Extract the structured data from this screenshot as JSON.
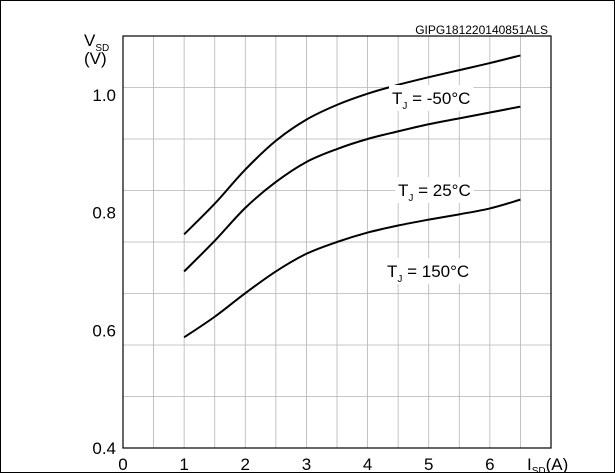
{
  "chart_data": {
    "type": "line",
    "figure_code": "GIPG181220140851ALS",
    "ylabel": {
      "main": "V",
      "sub": "SD",
      "unit": "(V)"
    },
    "xlabel": {
      "main": "I",
      "sub": "SD",
      "unit": "(A)"
    },
    "xlim": [
      0,
      7
    ],
    "ylim": [
      0.4,
      1.1
    ],
    "x_ticks": [
      "0",
      "1",
      "2",
      "3",
      "4",
      "5",
      "6"
    ],
    "y_ticks": [
      "0.4",
      "0.6",
      "0.8",
      "1.0"
    ],
    "grid": true,
    "series": [
      {
        "name": "T_J = -50°C",
        "label_main": "T",
        "label_sub": "J",
        "label_rest": " = -50°C",
        "x": [
          1,
          1.5,
          2,
          2.5,
          3,
          3.5,
          4,
          4.5,
          5,
          5.5,
          6,
          6.5
        ],
        "y": [
          0.763,
          0.815,
          0.873,
          0.922,
          0.958,
          0.983,
          1.002,
          1.017,
          1.03,
          1.042,
          1.054,
          1.067
        ]
      },
      {
        "name": "T_J = 25°C",
        "label_main": "T",
        "label_sub": "J",
        "label_rest": " = 25°C",
        "x": [
          1,
          1.5,
          2,
          2.5,
          3,
          3.5,
          4,
          4.5,
          5,
          5.5,
          6,
          6.5
        ],
        "y": [
          0.7,
          0.752,
          0.808,
          0.852,
          0.886,
          0.908,
          0.925,
          0.938,
          0.95,
          0.96,
          0.97,
          0.98
        ]
      },
      {
        "name": "T_J = 150°C",
        "label_main": "T",
        "label_sub": "J",
        "label_rest": " = 150°C",
        "x": [
          1,
          1.5,
          2,
          2.5,
          3,
          3.5,
          4,
          4.5,
          5,
          5.5,
          6,
          6.5
        ],
        "y": [
          0.588,
          0.623,
          0.663,
          0.7,
          0.73,
          0.75,
          0.766,
          0.778,
          0.788,
          0.797,
          0.807,
          0.822
        ]
      }
    ]
  }
}
